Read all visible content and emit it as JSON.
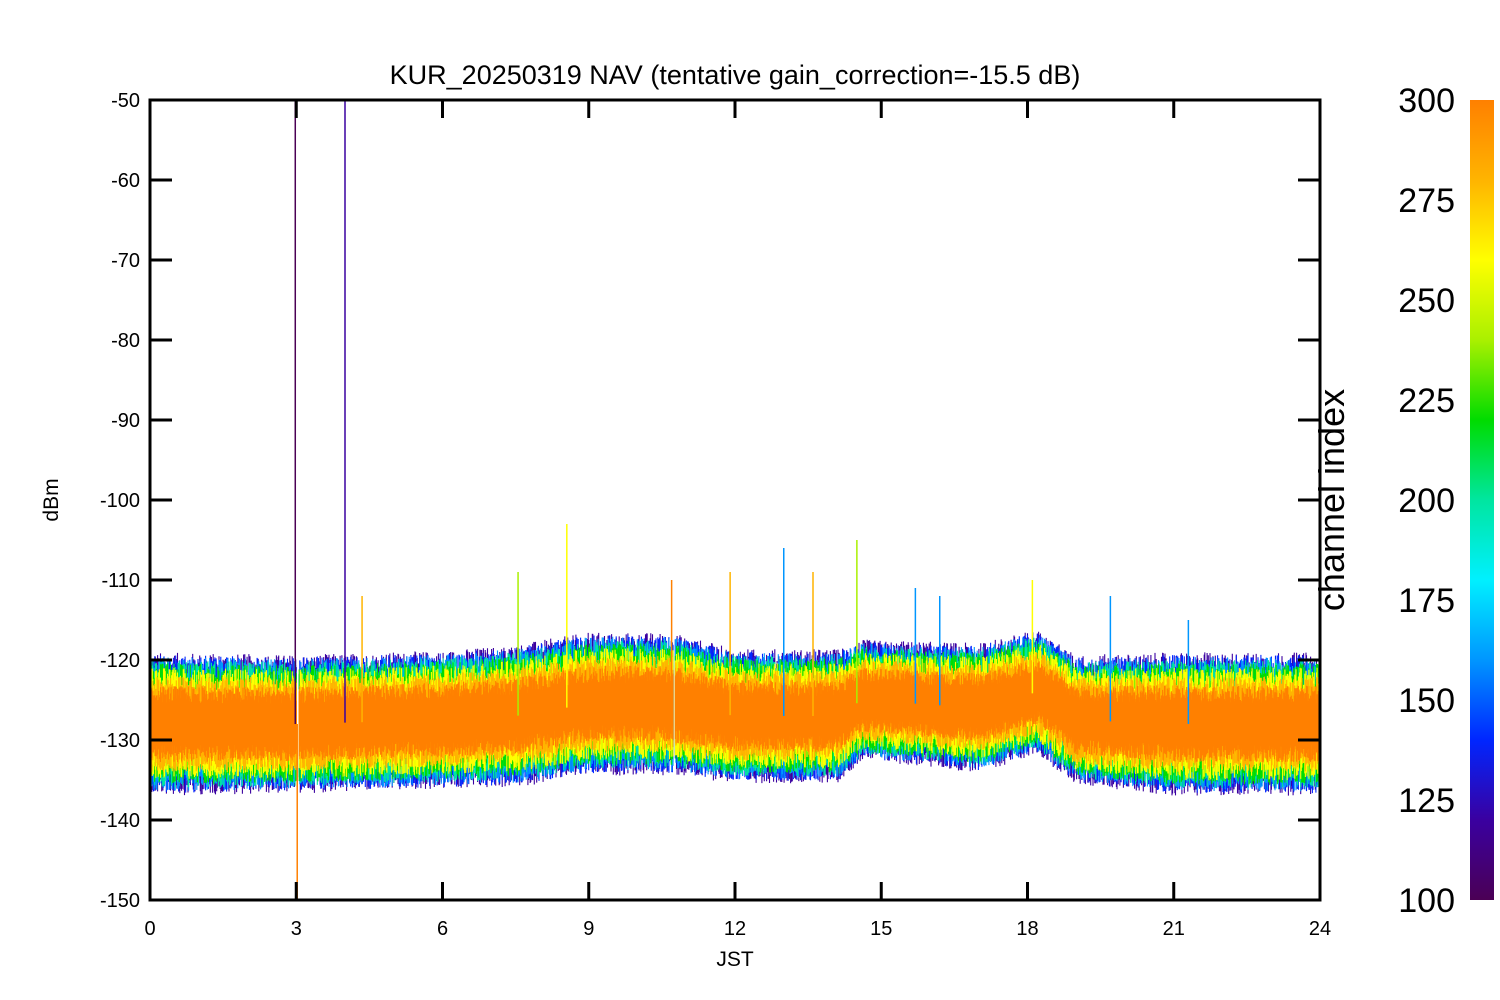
{
  "chart_data": {
    "type": "line",
    "title": "KUR_20250319 NAV (tentative gain_correction=-15.5 dB)",
    "xlabel": "JST",
    "ylabel": "dBm",
    "xlim": [
      0,
      24
    ],
    "ylim": [
      -150,
      -50
    ],
    "xticks": [
      "0",
      "3",
      "6",
      "9",
      "12",
      "15",
      "18",
      "21",
      "24"
    ],
    "yticks": [
      "-50",
      "-60",
      "-70",
      "-80",
      "-90",
      "-100",
      "-110",
      "-120",
      "-130",
      "-140",
      "-150"
    ],
    "grid": false,
    "colorbar": {
      "label": "channel index",
      "range": [
        100,
        300
      ],
      "ticks": [
        "300",
        "275",
        "250",
        "225",
        "200",
        "175",
        "150",
        "125",
        "100"
      ],
      "colormap": [
        "#4b0055",
        "#3a00a0",
        "#0026ff",
        "#0096ff",
        "#00f0ff",
        "#00e6a0",
        "#00dc00",
        "#aaf000",
        "#ffff00",
        "#ffb400",
        "#ff8000"
      ]
    },
    "noise_band": {
      "x": [
        0,
        3,
        6,
        7.5,
        9,
        10.7,
        12,
        14.1,
        14.6,
        17,
        18.2,
        19,
        21,
        24
      ],
      "mean": [
        -128,
        -128,
        -127.5,
        -127,
        -125.5,
        -125.5,
        -127,
        -127,
        -125,
        -126,
        -124,
        -127.5,
        -128,
        -128
      ],
      "upper": [
        -121,
        -121,
        -120.5,
        -119.5,
        -118,
        -118,
        -120,
        -120,
        -118,
        -118.5,
        -117.5,
        -121,
        -121,
        -121
      ],
      "lower": [
        -137,
        -136.5,
        -136,
        -135.5,
        -134,
        -134,
        -135,
        -135,
        -131.5,
        -133,
        -131.5,
        -135.5,
        -137,
        -137
      ]
    },
    "spikes": [
      {
        "x": 2.98,
        "y": -50,
        "channel": 105
      },
      {
        "x": 3.02,
        "y": -150,
        "channel": 295
      },
      {
        "x": 4.0,
        "y": -50,
        "channel": 110
      },
      {
        "x": 4.35,
        "y": -112,
        "channel": 280
      },
      {
        "x": 7.55,
        "y": -109,
        "channel": 230
      },
      {
        "x": 8.55,
        "y": -103,
        "channel": 255
      },
      {
        "x": 10.7,
        "y": -110,
        "channel": 290
      },
      {
        "x": 11.9,
        "y": -109,
        "channel": 270
      },
      {
        "x": 13.0,
        "y": -106,
        "channel": 150
      },
      {
        "x": 13.6,
        "y": -109,
        "channel": 275
      },
      {
        "x": 14.5,
        "y": -105,
        "channel": 240
      },
      {
        "x": 15.7,
        "y": -111,
        "channel": 150
      },
      {
        "x": 16.2,
        "y": -112,
        "channel": 150
      },
      {
        "x": 18.1,
        "y": -110,
        "channel": 265
      },
      {
        "x": 19.7,
        "y": -112,
        "channel": 160
      },
      {
        "x": 21.3,
        "y": -115,
        "channel": 150
      }
    ],
    "gaps": [
      3.03,
      10.75
    ]
  }
}
